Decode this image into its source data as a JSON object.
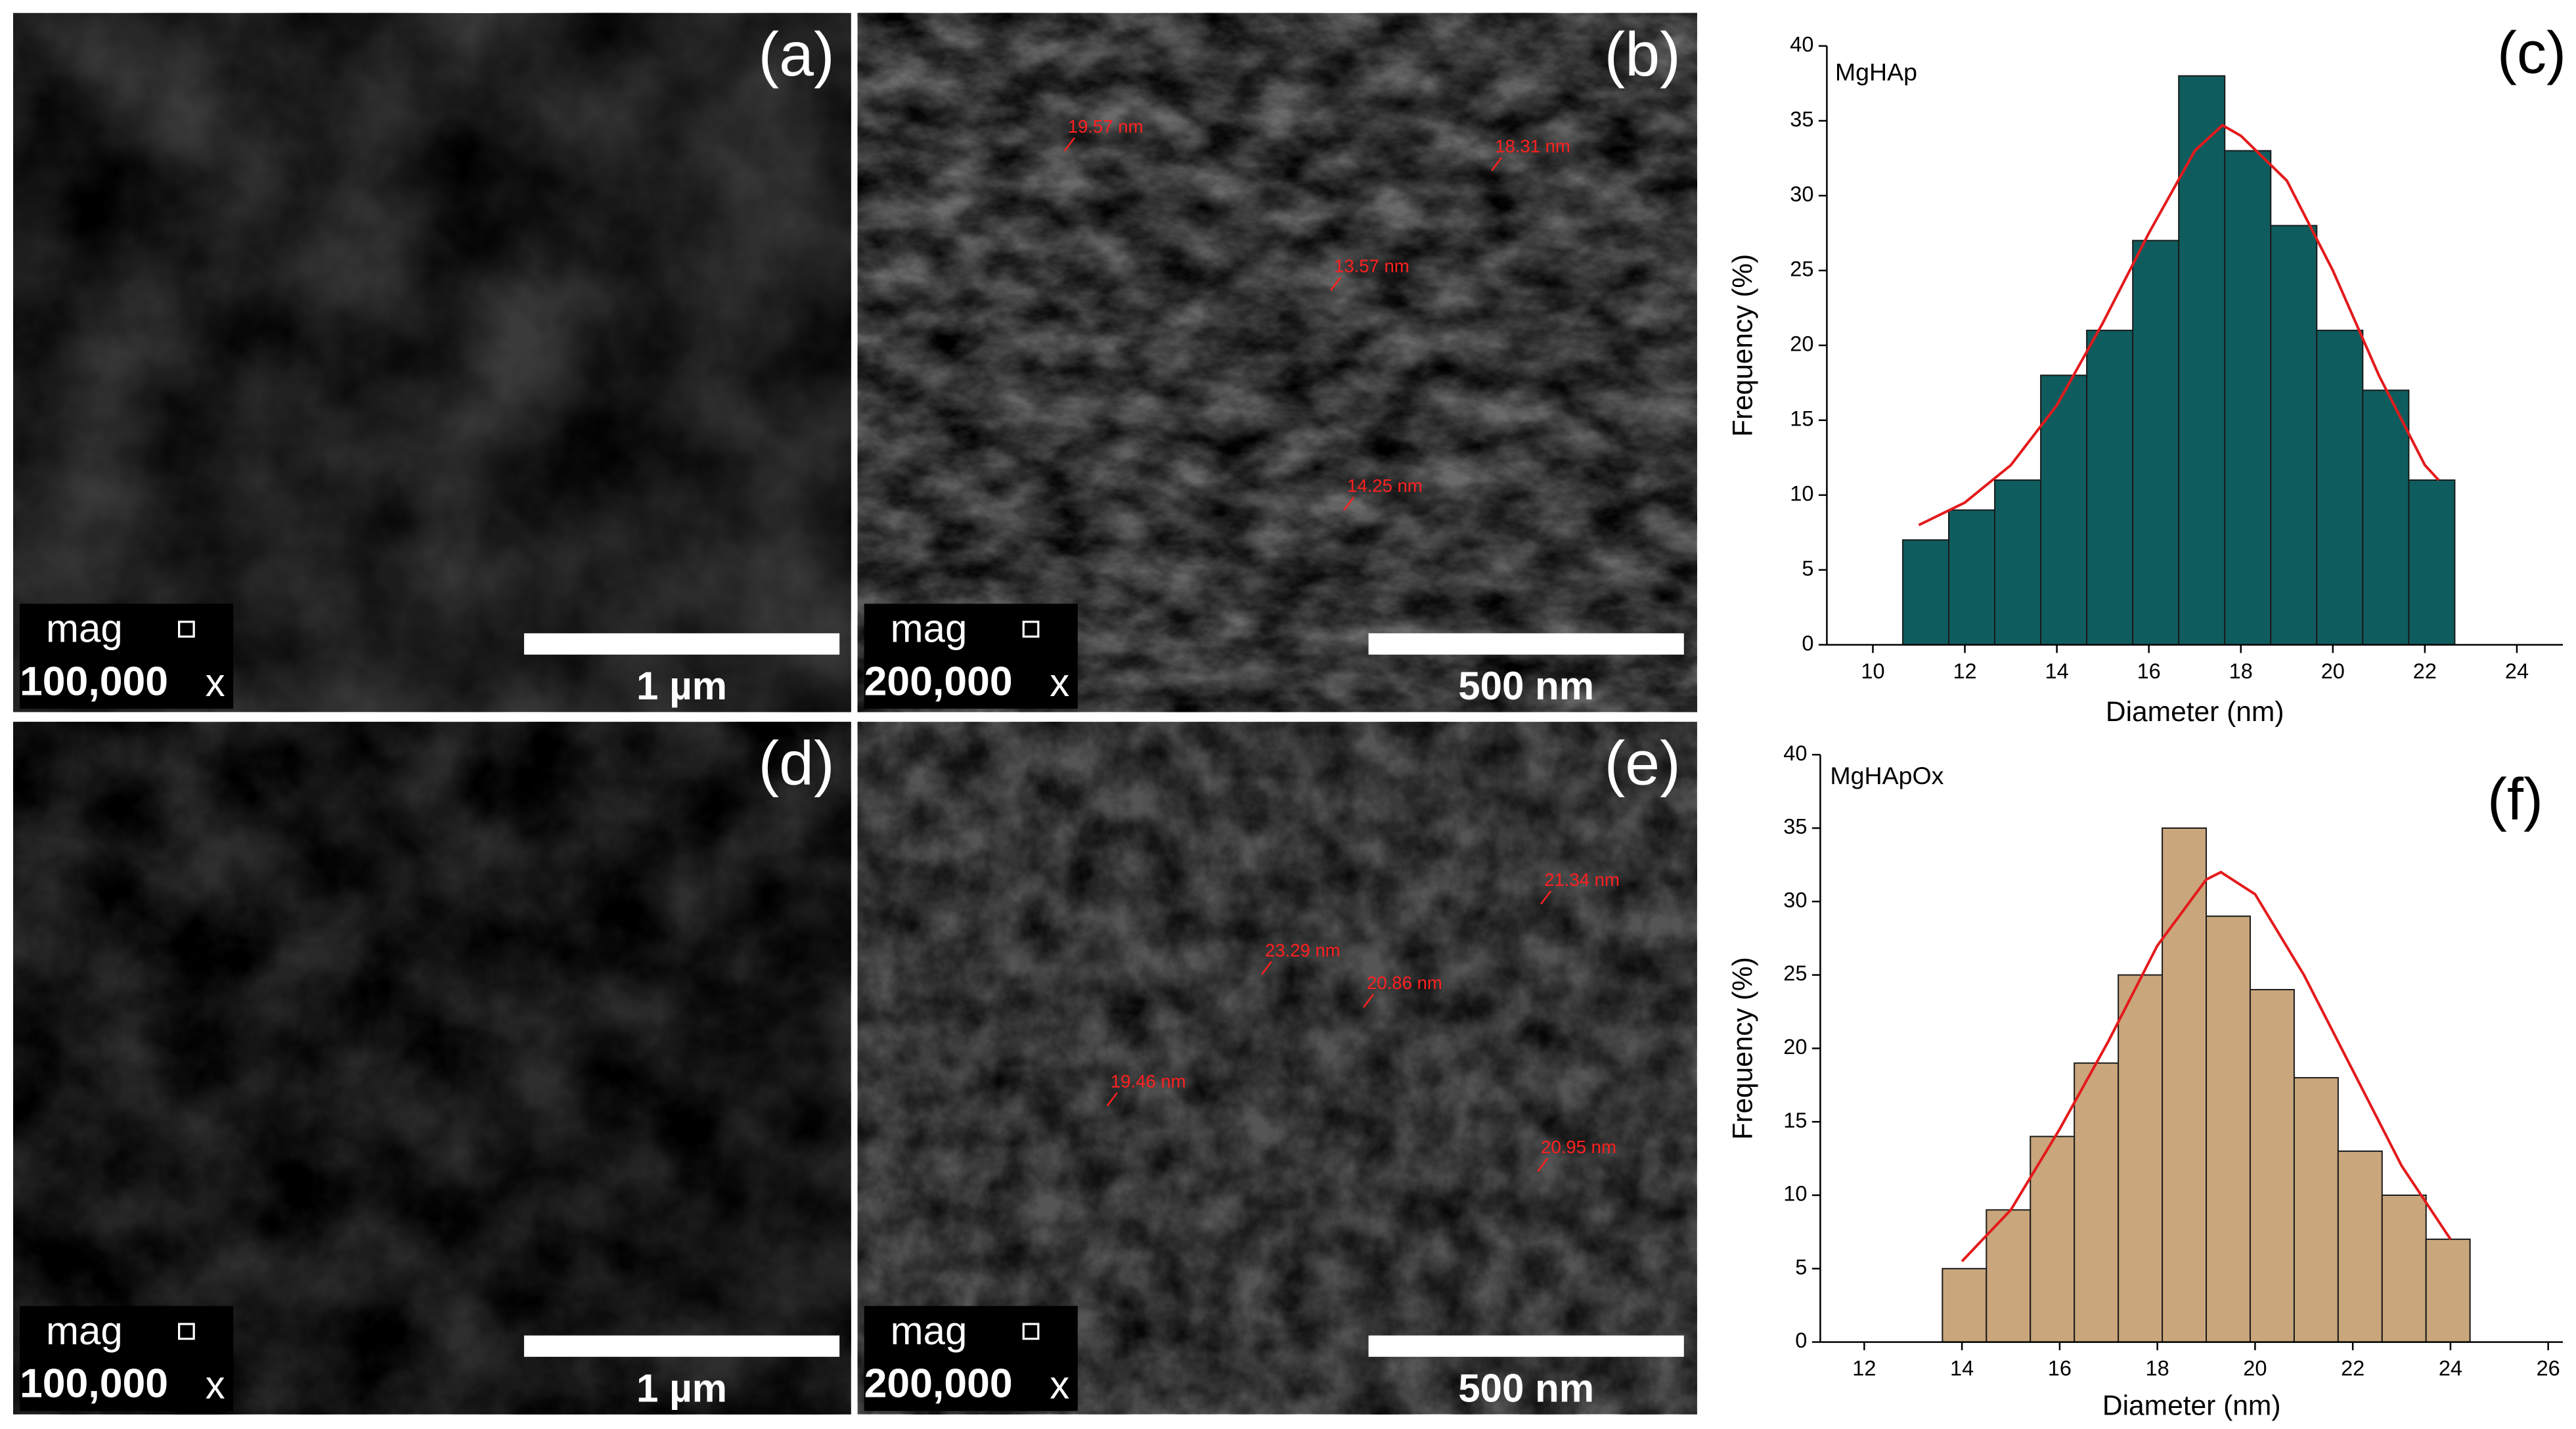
{
  "panels": [
    {
      "label": "(a)",
      "mag_label": "mag",
      "mag_value": "100,000",
      "mag_unit": "x",
      "scale_bar": "1 µm"
    },
    {
      "label": "(b)",
      "mag_label": "mag",
      "mag_value": "200,000",
      "mag_unit": "x",
      "scale_bar": "500 nm",
      "measurements": [
        "19.57 nm",
        "18.31 nm",
        "13.57 nm",
        "14.25 nm"
      ]
    },
    {
      "label": "(d)",
      "mag_label": "mag",
      "mag_value": "100,000",
      "mag_unit": "x",
      "scale_bar": "1 µm"
    },
    {
      "label": "(e)",
      "mag_label": "mag",
      "mag_value": "200,000",
      "mag_unit": "x",
      "scale_bar": "500 nm",
      "measurements": [
        "21.34 nm",
        "23.29 nm",
        "20.86 nm",
        "19.46 nm",
        "20.95 nm"
      ]
    }
  ],
  "chart_data": [
    {
      "type": "histogram",
      "panel_label": "(c)",
      "annotation": "MgHAp",
      "xlabel": "Diameter (nm)",
      "ylabel": "Frequency (%)",
      "color": "#0f5c5e",
      "bins": [
        10.65,
        11.65,
        12.65,
        13.65,
        14.65,
        15.65,
        16.65,
        17.65,
        18.65,
        19.65,
        20.65,
        21.65,
        22.65
      ],
      "values": [
        7,
        9,
        11,
        18,
        21,
        27,
        38,
        33,
        28,
        21,
        17,
        11
      ],
      "fit": {
        "color": "#e31a1c",
        "x": [
          11,
          12,
          13,
          14,
          15,
          16,
          17,
          17.6,
          18,
          19,
          20,
          21,
          22,
          22.3
        ],
        "values": [
          8,
          9.5,
          12,
          16,
          21.5,
          27.5,
          33,
          34.7,
          34,
          31,
          25,
          18,
          12,
          11
        ]
      },
      "xlim": [
        9,
        25
      ],
      "xticks": [
        10,
        12,
        14,
        16,
        18,
        20,
        22,
        24
      ],
      "ylim": [
        0,
        40
      ],
      "yticks": [
        0,
        5,
        10,
        15,
        20,
        25,
        30,
        35,
        40
      ]
    },
    {
      "type": "histogram",
      "panel_label": "(f)",
      "annotation": "MgHApOx",
      "xlabel": "Diameter (nm)",
      "ylabel": "Frequency (%)",
      "color": "#c9a67c",
      "bins": [
        13.6,
        14.5,
        15.4,
        16.3,
        17.2,
        18.1,
        19.0,
        19.9,
        20.8,
        21.7,
        22.6,
        23.5,
        24.4
      ],
      "values": [
        5,
        9,
        14,
        19,
        25,
        35,
        29,
        24,
        18,
        13,
        10,
        7
      ],
      "fit": {
        "color": "#e31a1c",
        "x": [
          14,
          15,
          16,
          17,
          18,
          19,
          19.3,
          20,
          21,
          22,
          23,
          24
        ],
        "values": [
          5.5,
          9,
          14.5,
          20.5,
          27,
          31.5,
          32,
          30.5,
          25,
          18.5,
          12,
          7
        ]
      },
      "xlim": [
        11.1,
        26.3
      ],
      "xticks": [
        12,
        14,
        16,
        18,
        20,
        22,
        24,
        26
      ],
      "ylim": [
        0,
        40
      ],
      "yticks": [
        0,
        5,
        10,
        15,
        20,
        25,
        30,
        35,
        40
      ]
    }
  ]
}
